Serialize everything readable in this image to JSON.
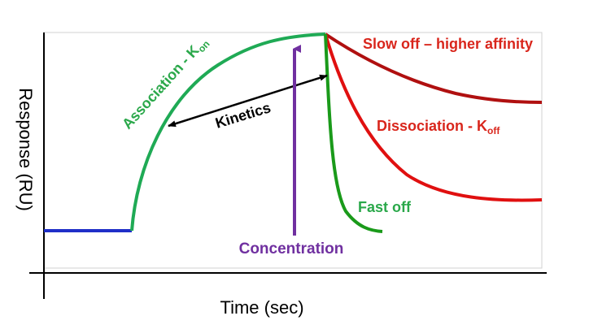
{
  "axes": {
    "y_label": "Response (RU)",
    "x_label": "Time (sec)"
  },
  "labels": {
    "association": "Association - K",
    "association_sub": "on",
    "kinetics": "Kinetics",
    "concentration": "Concentration",
    "slow_off": "Slow off – higher affinity",
    "dissociation": "Dissociation - K",
    "dissociation_sub": "off",
    "fast_off": "Fast off"
  },
  "colors": {
    "baseline": "#1f2fc8",
    "association": "#1faa55",
    "fast_off": "#1a9a1a",
    "dissociation": "#e01010",
    "slow_off": "#b01010",
    "concentration": "#7a2fa0",
    "kinetics_arrow": "#000000",
    "text_green": "#2aa84a",
    "text_red": "#d9261c",
    "text_purple": "#7030a0",
    "axis": "#000000"
  }
}
